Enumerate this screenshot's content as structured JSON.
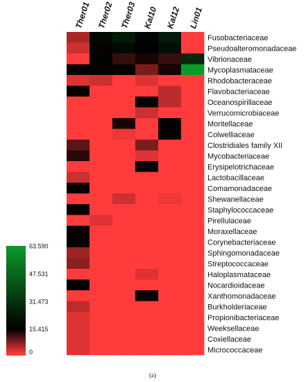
{
  "chart_data": {
    "type": "heatmap",
    "columns": [
      "Ther01",
      "Ther02",
      "Ther03",
      "Kal10",
      "Kal12",
      "Lin01"
    ],
    "rows": [
      "Fusobacteriaceae",
      "Pseudoalteromonadaceae",
      "Vibrionaceae",
      "Mycoplasmataceae",
      "Rhodobacteraceae",
      "Flavobacteriaceae",
      "Oceanospirillaceae",
      "Verrucomicrobiaceae",
      "Moritellaceae",
      "Colwelliaceae",
      "Clostridiales family XII",
      "Mycobacteriaceae",
      "Erysipelotrichaceae",
      "Lactobacillaceae",
      "Comamonadaceae",
      "Shewanellaceae",
      "Staphylococcaceae",
      "Pirellulaceae",
      "Moraxellaceae",
      "Corynebacteriaceae",
      "Sphingomonadaceae",
      "Streptococcaceae",
      "Haloplasmataceae",
      "Nocardioidaceae",
      "Xanthomonadaceae",
      "Burkholderiaceae",
      "Propionibacteriaceae",
      "Weeksellaceae",
      "Coxiellaceae",
      "Micrococcaceae"
    ],
    "values": [
      [
        5,
        18,
        24,
        17,
        24,
        0
      ],
      [
        3,
        15,
        19,
        16,
        20,
        0
      ],
      [
        0,
        17,
        12,
        14,
        12,
        28
      ],
      [
        15,
        15,
        15,
        8,
        14,
        63.59
      ],
      [
        2,
        3,
        0,
        2,
        0,
        0
      ],
      [
        15,
        0,
        0,
        0,
        4,
        0
      ],
      [
        0,
        0,
        0,
        15,
        4,
        0
      ],
      [
        0,
        0,
        0,
        3,
        0,
        0
      ],
      [
        0,
        0,
        14,
        0,
        15,
        0
      ],
      [
        0,
        0,
        1,
        0,
        15,
        0
      ],
      [
        10,
        0,
        0,
        8,
        0,
        0
      ],
      [
        13,
        0,
        0,
        2,
        0,
        0
      ],
      [
        0,
        0,
        0,
        15,
        0,
        0
      ],
      [
        3,
        0,
        0,
        0,
        0,
        0
      ],
      [
        15,
        0,
        0,
        0,
        0,
        0
      ],
      [
        0,
        0,
        3,
        0,
        1,
        0
      ],
      [
        15,
        0,
        0,
        0,
        0,
        0
      ],
      [
        0,
        2,
        0,
        0,
        0,
        0
      ],
      [
        15,
        0,
        0,
        0,
        0,
        0
      ],
      [
        15,
        0,
        0,
        0,
        0,
        0
      ],
      [
        6,
        0,
        0,
        0,
        0,
        0
      ],
      [
        7,
        0,
        0,
        0,
        0,
        0
      ],
      [
        0,
        0,
        0,
        2,
        0,
        0
      ],
      [
        15,
        0,
        0,
        0,
        0,
        0
      ],
      [
        0,
        0,
        0,
        15,
        0,
        0
      ],
      [
        4,
        0,
        0,
        0,
        0,
        0
      ],
      [
        2,
        0,
        0,
        0,
        0,
        0
      ],
      [
        2,
        0,
        0,
        0,
        0,
        0
      ],
      [
        2,
        0,
        0,
        0,
        0,
        0
      ],
      [
        2,
        0,
        0,
        0,
        0,
        0
      ]
    ],
    "scale": {
      "min": 0,
      "max": 63.59,
      "ticks": [
        "63.590",
        "47.531",
        "31.473",
        "15.415",
        "0"
      ],
      "tick_values": [
        63.59,
        47.531,
        31.473,
        15.415,
        0
      ],
      "colors": {
        "low": "#ff3b3b",
        "mid": "#000000",
        "high": "#0d9a2a"
      }
    },
    "legend_placement": "bottom-left",
    "caption": "(a)"
  }
}
